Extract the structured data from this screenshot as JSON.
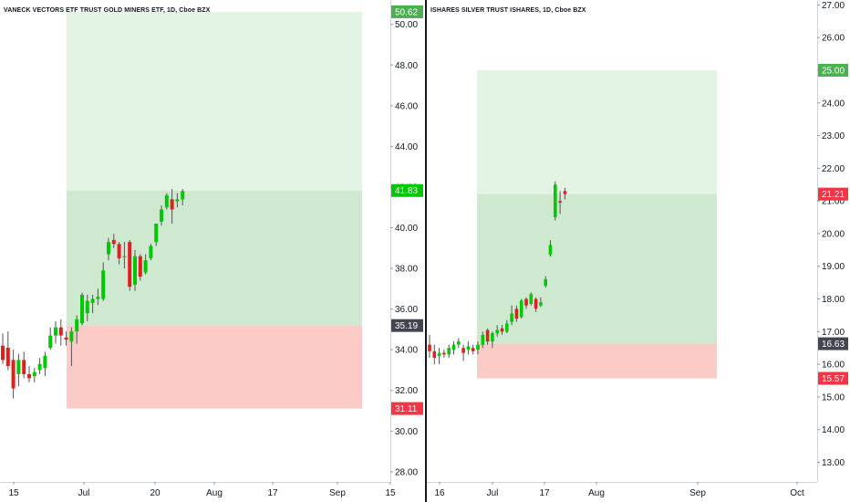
{
  "panes": [
    {
      "id": "left",
      "title": "VANECK VECTORS ETF TRUST GOLD MINERS ETF, 1D, Cboe BZX",
      "y_axis": {
        "ticks": [
          "50.00",
          "48.00",
          "46.00",
          "44.00",
          "42.00",
          "40.00",
          "38.00",
          "36.00",
          "34.00",
          "32.00",
          "30.00",
          "28.00"
        ],
        "tick_values": [
          50,
          48,
          46,
          44,
          42,
          40,
          38,
          36,
          34,
          32,
          30,
          28
        ],
        "range": [
          27.5,
          51.2
        ]
      },
      "x_axis": {
        "labels": [
          "15",
          "Jul",
          "20",
          "Aug",
          "17",
          "Sep",
          "15"
        ]
      },
      "price_labels": [
        {
          "text": "50.62",
          "value": 50.62,
          "color": "#4caf50"
        },
        {
          "text": "41.83",
          "value": 41.83,
          "color": "#00c805"
        },
        {
          "text": "35.19",
          "value": 35.19,
          "color": "#434651"
        },
        {
          "text": "31.11",
          "value": 31.11,
          "color": "#f23645"
        }
      ],
      "position_tool": {
        "target": 50.62,
        "entry": 35.19,
        "stop": 31.11,
        "current": 41.83,
        "colors": {
          "profit": "#e3f3e4",
          "profit_filled": "#cfe9d1",
          "loss": "#fbcbc8"
        }
      },
      "candles": [
        {
          "o": 34.2,
          "h": 34.8,
          "l": 33.3,
          "c": 33.5
        },
        {
          "o": 34.1,
          "h": 34.9,
          "l": 33.0,
          "c": 33.2
        },
        {
          "o": 33.5,
          "h": 34.0,
          "l": 31.6,
          "c": 32.1
        },
        {
          "o": 32.8,
          "h": 33.8,
          "l": 32.2,
          "c": 33.5
        },
        {
          "o": 33.5,
          "h": 33.9,
          "l": 32.6,
          "c": 32.8
        },
        {
          "o": 32.8,
          "h": 33.2,
          "l": 32.4,
          "c": 32.6
        },
        {
          "o": 32.7,
          "h": 33.1,
          "l": 32.4,
          "c": 32.9
        },
        {
          "o": 33.0,
          "h": 33.6,
          "l": 32.8,
          "c": 33.3
        },
        {
          "o": 33.1,
          "h": 33.9,
          "l": 32.7,
          "c": 33.7
        },
        {
          "o": 34.1,
          "h": 35.1,
          "l": 34.0,
          "c": 34.7
        },
        {
          "o": 34.7,
          "h": 35.4,
          "l": 34.3,
          "c": 35.1
        },
        {
          "o": 35.1,
          "h": 35.5,
          "l": 34.2,
          "c": 34.7
        },
        {
          "o": 34.6,
          "h": 34.9,
          "l": 34.2,
          "c": 34.5
        },
        {
          "o": 34.4,
          "h": 35.1,
          "l": 33.2,
          "c": 34.9
        },
        {
          "o": 34.9,
          "h": 35.7,
          "l": 34.3,
          "c": 35.5
        },
        {
          "o": 35.3,
          "h": 36.8,
          "l": 35.2,
          "c": 36.7
        },
        {
          "o": 35.8,
          "h": 36.7,
          "l": 35.4,
          "c": 36.4
        },
        {
          "o": 36.3,
          "h": 36.7,
          "l": 35.8,
          "c": 36.5
        },
        {
          "o": 36.5,
          "h": 37.0,
          "l": 36.2,
          "c": 36.6
        },
        {
          "o": 36.5,
          "h": 38.3,
          "l": 36.4,
          "c": 37.9
        },
        {
          "o": 38.7,
          "h": 39.5,
          "l": 38.4,
          "c": 39.3
        },
        {
          "o": 39.4,
          "h": 39.7,
          "l": 39.0,
          "c": 39.2
        },
        {
          "o": 39.2,
          "h": 39.3,
          "l": 38.2,
          "c": 38.5
        },
        {
          "o": 38.6,
          "h": 39.3,
          "l": 38.0,
          "c": 38.6
        },
        {
          "o": 39.3,
          "h": 39.4,
          "l": 36.9,
          "c": 37.1
        },
        {
          "o": 37.2,
          "h": 38.9,
          "l": 36.9,
          "c": 38.6
        },
        {
          "o": 38.6,
          "h": 38.7,
          "l": 37.4,
          "c": 37.6
        },
        {
          "o": 37.8,
          "h": 38.7,
          "l": 37.7,
          "c": 38.4
        },
        {
          "o": 38.5,
          "h": 39.2,
          "l": 38.4,
          "c": 39.1
        },
        {
          "o": 39.3,
          "h": 40.2,
          "l": 39.1,
          "c": 40.2
        },
        {
          "o": 40.3,
          "h": 41.1,
          "l": 40.1,
          "c": 40.9
        },
        {
          "o": 41.0,
          "h": 41.7,
          "l": 40.9,
          "c": 41.6
        },
        {
          "o": 41.4,
          "h": 41.9,
          "l": 40.2,
          "c": 40.9
        },
        {
          "o": 41.3,
          "h": 41.7,
          "l": 41.0,
          "c": 41.4
        },
        {
          "o": 41.4,
          "h": 41.9,
          "l": 41.1,
          "c": 41.8
        }
      ]
    },
    {
      "id": "right",
      "title": "ISHARES SILVER TRUST ISHARES, 1D, Cboe BZX",
      "y_axis": {
        "ticks": [
          "27.00",
          "26.00",
          "25.00",
          "24.00",
          "23.00",
          "22.00",
          "21.00",
          "20.00",
          "19.00",
          "18.00",
          "17.00",
          "16.00",
          "15.00",
          "14.00",
          "13.00"
        ],
        "tick_values": [
          27,
          26,
          25,
          24,
          23,
          22,
          21,
          20,
          19,
          18,
          17,
          16,
          15,
          14,
          13
        ],
        "range": [
          12.4,
          27.15
        ]
      },
      "x_axis": {
        "labels": [
          "16",
          "Jul",
          "17",
          "Aug",
          "Sep",
          "Oct"
        ]
      },
      "price_labels": [
        {
          "text": "25.00",
          "value": 25.0,
          "color": "#4caf50"
        },
        {
          "text": "21.21",
          "value": 21.21,
          "color": "#f23645"
        },
        {
          "text": "16.63",
          "value": 16.63,
          "color": "#434651"
        },
        {
          "text": "15.57",
          "value": 15.57,
          "color": "#f23645"
        }
      ],
      "position_tool": {
        "target": 25.0,
        "entry": 16.63,
        "stop": 15.57,
        "current": 21.21,
        "colors": {
          "profit": "#e3f3e4",
          "profit_filled": "#cfe9d1",
          "loss": "#fbcbc8"
        }
      },
      "candles": [
        {
          "o": 16.6,
          "h": 16.9,
          "l": 16.2,
          "c": 16.4
        },
        {
          "o": 16.4,
          "h": 16.6,
          "l": 16.0,
          "c": 16.2
        },
        {
          "o": 16.25,
          "h": 16.5,
          "l": 16.0,
          "c": 16.35
        },
        {
          "o": 16.35,
          "h": 16.45,
          "l": 16.2,
          "c": 16.3
        },
        {
          "o": 16.3,
          "h": 16.6,
          "l": 16.2,
          "c": 16.5
        },
        {
          "o": 16.45,
          "h": 16.7,
          "l": 16.3,
          "c": 16.6
        },
        {
          "o": 16.6,
          "h": 16.8,
          "l": 16.5,
          "c": 16.7
        },
        {
          "o": 16.5,
          "h": 16.6,
          "l": 16.1,
          "c": 16.35
        },
        {
          "o": 16.45,
          "h": 16.7,
          "l": 16.3,
          "c": 16.55
        },
        {
          "o": 16.5,
          "h": 16.6,
          "l": 16.3,
          "c": 16.4
        },
        {
          "o": 16.45,
          "h": 16.7,
          "l": 16.3,
          "c": 16.6
        },
        {
          "o": 16.6,
          "h": 17.0,
          "l": 16.5,
          "c": 16.9
        },
        {
          "o": 17.05,
          "h": 17.1,
          "l": 16.6,
          "c": 16.7
        },
        {
          "o": 16.7,
          "h": 17.0,
          "l": 16.5,
          "c": 16.95
        },
        {
          "o": 16.95,
          "h": 17.2,
          "l": 16.85,
          "c": 17.05
        },
        {
          "o": 17.1,
          "h": 17.2,
          "l": 16.9,
          "c": 17.0
        },
        {
          "o": 17.0,
          "h": 17.35,
          "l": 16.95,
          "c": 17.25
        },
        {
          "o": 17.3,
          "h": 17.8,
          "l": 17.2,
          "c": 17.55
        },
        {
          "o": 17.7,
          "h": 17.8,
          "l": 17.3,
          "c": 17.4
        },
        {
          "o": 17.45,
          "h": 18.0,
          "l": 17.4,
          "c": 17.95
        },
        {
          "o": 18.0,
          "h": 18.05,
          "l": 17.7,
          "c": 17.8
        },
        {
          "o": 17.85,
          "h": 18.2,
          "l": 17.8,
          "c": 18.15
        },
        {
          "o": 18.0,
          "h": 18.05,
          "l": 17.6,
          "c": 17.7
        },
        {
          "o": 17.8,
          "h": 18.05,
          "l": 17.75,
          "c": 17.9
        },
        {
          "o": 18.4,
          "h": 18.7,
          "l": 18.35,
          "c": 18.6
        },
        {
          "o": 19.35,
          "h": 19.8,
          "l": 19.3,
          "c": 19.65
        },
        {
          "o": 20.5,
          "h": 21.6,
          "l": 20.4,
          "c": 21.5
        },
        {
          "o": 21.0,
          "h": 21.3,
          "l": 20.6,
          "c": 20.95
        },
        {
          "o": 21.3,
          "h": 21.4,
          "l": 21.05,
          "c": 21.21
        }
      ]
    }
  ]
}
